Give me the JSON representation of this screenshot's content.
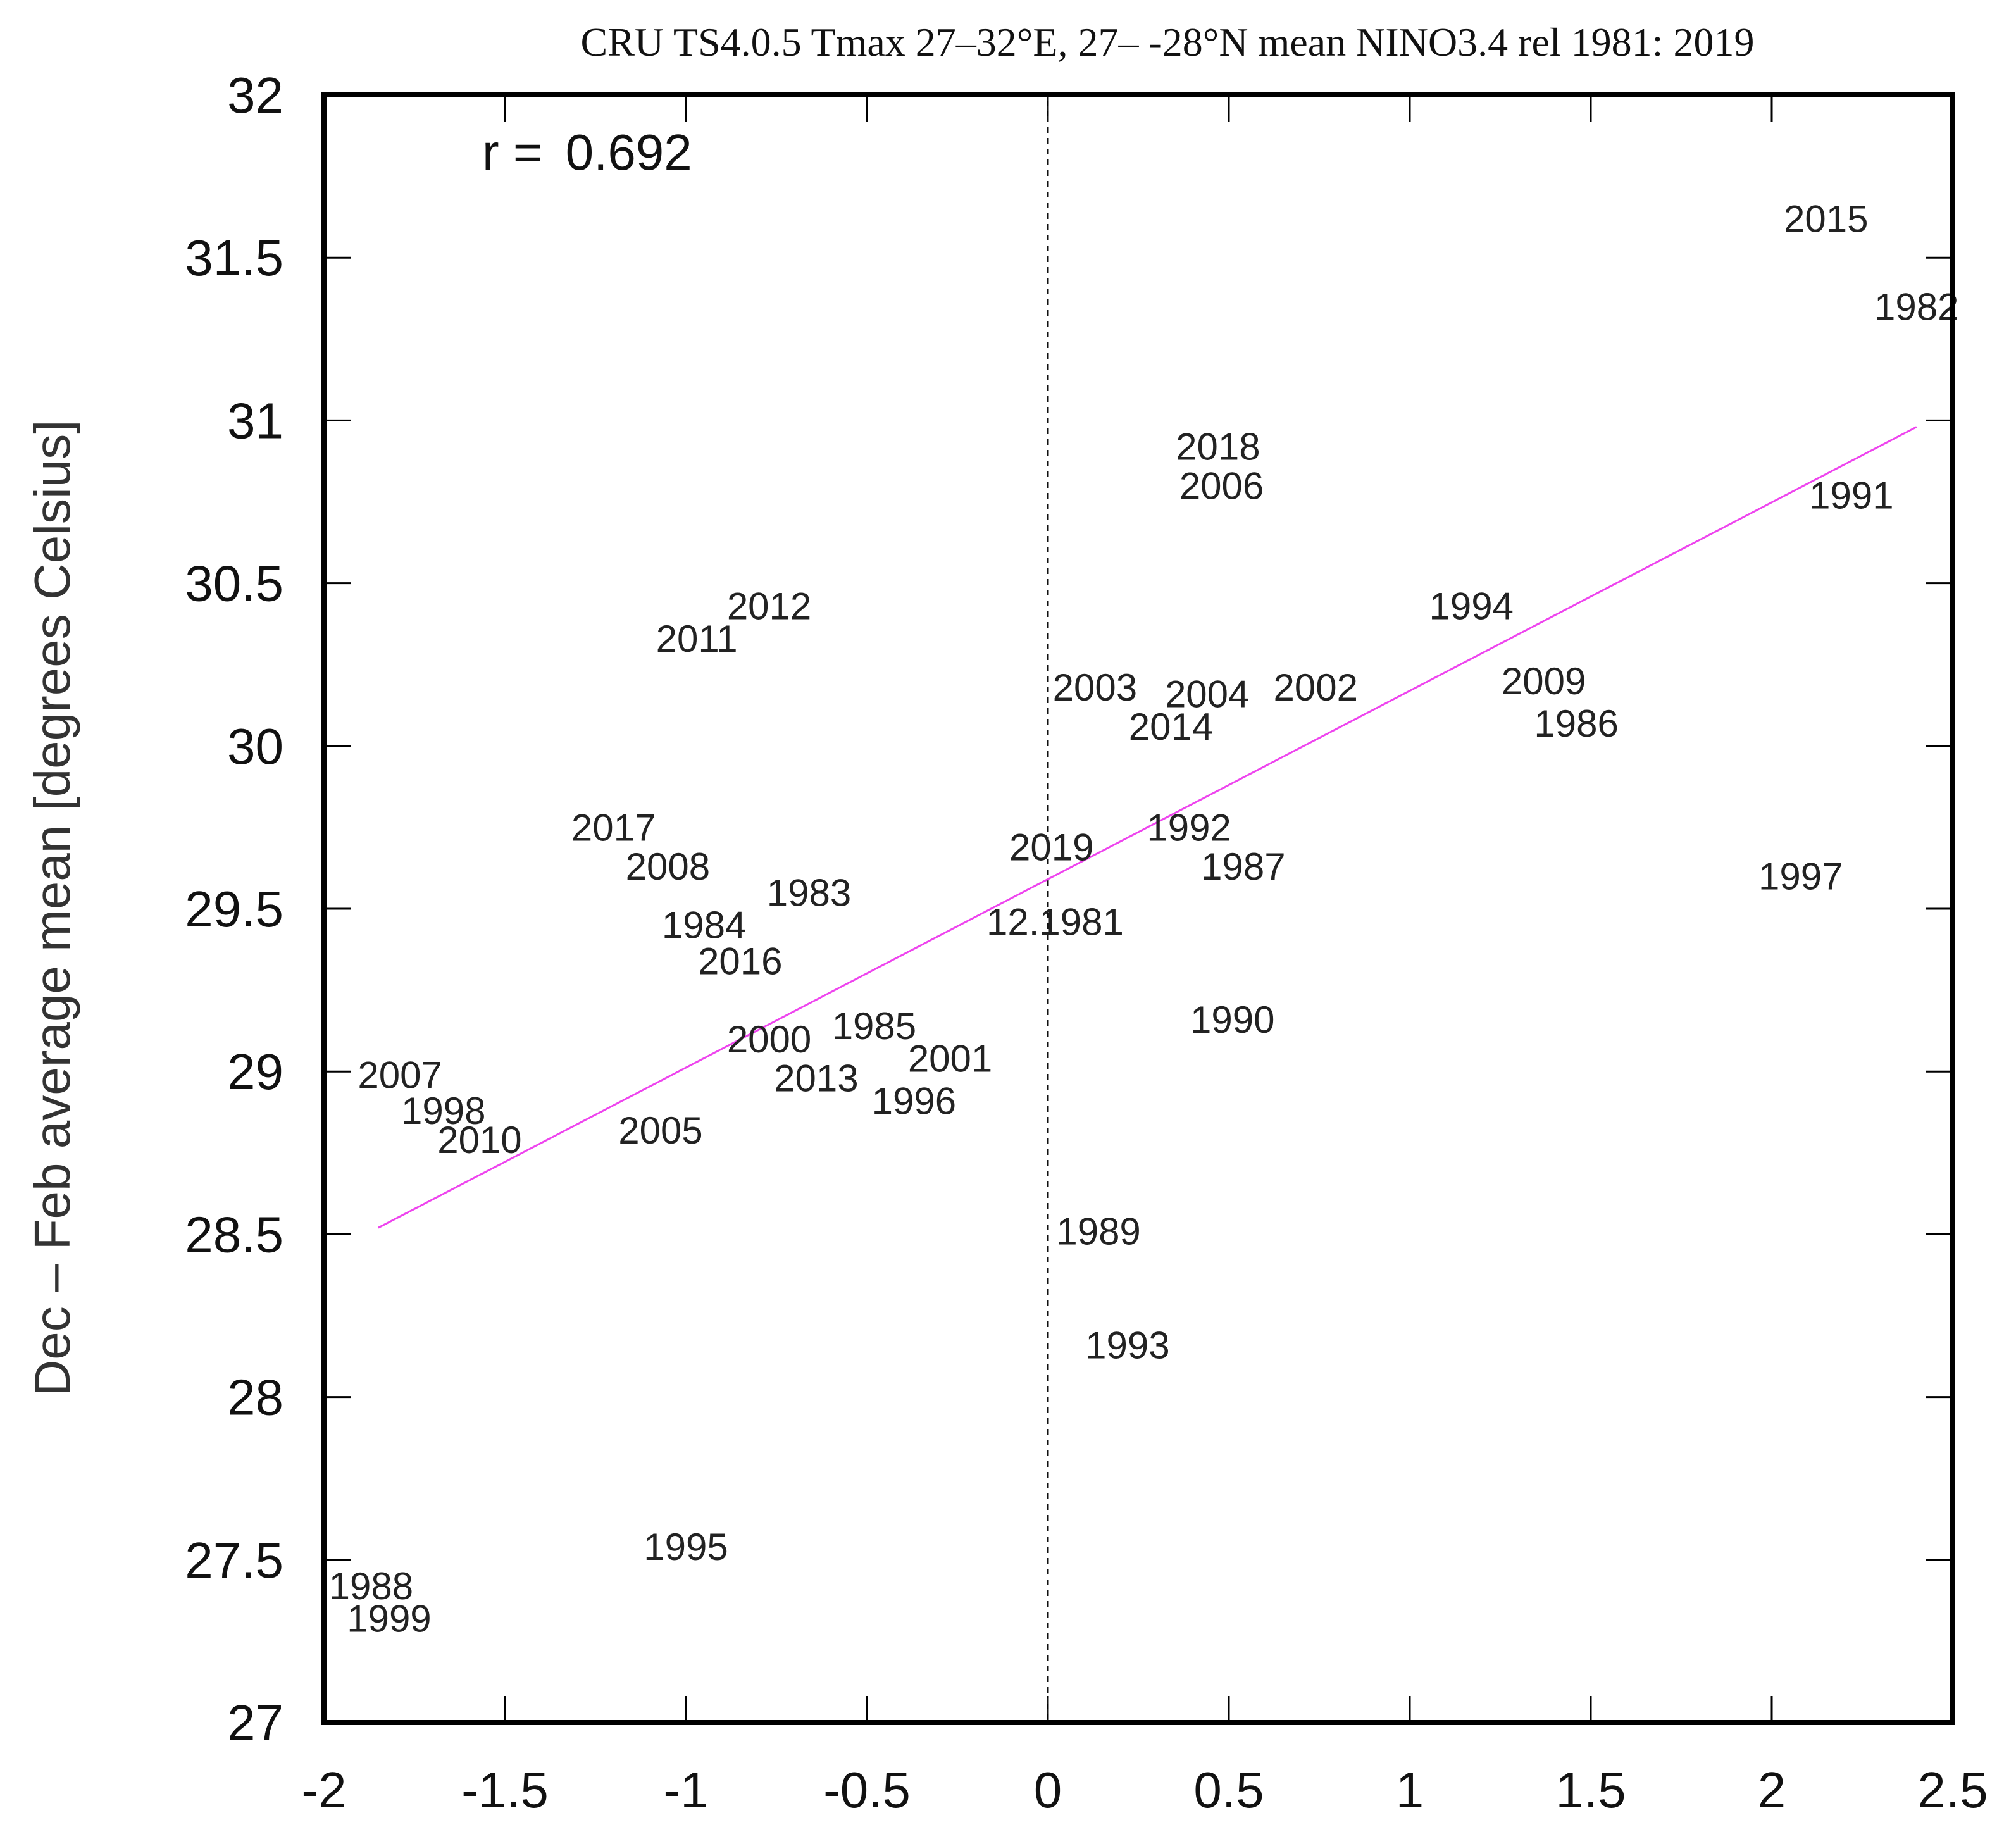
{
  "chart_data": {
    "type": "scatter",
    "title": "CRU TS4.0.5 Tmax 27–32°E, 27– -28°N mean NINO3.4 rel 1981: 2019",
    "xlabel": "",
    "ylabel": "Dec – Feb average mean [degrees Celsius]",
    "xlim": [
      -2,
      2.5
    ],
    "ylim": [
      27,
      32
    ],
    "xticks": [
      "-2",
      "-1.5",
      "-1",
      "-0.5",
      "0",
      "0.5",
      "1",
      "1.5",
      "2",
      "2.5"
    ],
    "yticks": [
      "27",
      "27.5",
      "28",
      "28.5",
      "29",
      "29.5",
      "30",
      "30.5",
      "31",
      "31.5",
      "32"
    ],
    "correlation": {
      "label": "r =",
      "value": "0.692"
    },
    "zero_line": {
      "x": 0,
      "style": "dotted"
    },
    "regression": {
      "color": "#ee44ee",
      "x0": -1.85,
      "y0": 28.52,
      "x1": 2.4,
      "y1": 30.98
    },
    "points": [
      {
        "label": "2015",
        "x": 2.15,
        "y": 31.62
      },
      {
        "label": "1982",
        "x": 2.4,
        "y": 31.35
      },
      {
        "label": "2018",
        "x": 0.47,
        "y": 30.92
      },
      {
        "label": "2006",
        "x": 0.48,
        "y": 30.8
      },
      {
        "label": "1991",
        "x": 2.22,
        "y": 30.77
      },
      {
        "label": "1994",
        "x": 1.17,
        "y": 30.43
      },
      {
        "label": "2012",
        "x": -0.77,
        "y": 30.43
      },
      {
        "label": "2011",
        "x": -0.97,
        "y": 30.33
      },
      {
        "label": "2003",
        "x": 0.13,
        "y": 30.18
      },
      {
        "label": "2004",
        "x": 0.44,
        "y": 30.16
      },
      {
        "label": "2002",
        "x": 0.74,
        "y": 30.18
      },
      {
        "label": "2009",
        "x": 1.37,
        "y": 30.2
      },
      {
        "label": "2014",
        "x": 0.34,
        "y": 30.06
      },
      {
        "label": "1986",
        "x": 1.46,
        "y": 30.07
      },
      {
        "label": "2017",
        "x": -1.2,
        "y": 29.75
      },
      {
        "label": "1992",
        "x": 0.39,
        "y": 29.75
      },
      {
        "label": "2019",
        "x": 0.01,
        "y": 29.69
      },
      {
        "label": "2008",
        "x": -1.05,
        "y": 29.63
      },
      {
        "label": "1987",
        "x": 0.54,
        "y": 29.63
      },
      {
        "label": "1997",
        "x": 2.08,
        "y": 29.6
      },
      {
        "label": "1983",
        "x": -0.66,
        "y": 29.55
      },
      {
        "label": "1984",
        "x": -0.95,
        "y": 29.45
      },
      {
        "label": "12.1981",
        "x": 0.02,
        "y": 29.46
      },
      {
        "label": "2016",
        "x": -0.85,
        "y": 29.34
      },
      {
        "label": "1990",
        "x": 0.51,
        "y": 29.16
      },
      {
        "label": "1985",
        "x": -0.48,
        "y": 29.14
      },
      {
        "label": "2000",
        "x": -0.77,
        "y": 29.1
      },
      {
        "label": "2001",
        "x": -0.27,
        "y": 29.04
      },
      {
        "label": "2007",
        "x": -1.79,
        "y": 28.99
      },
      {
        "label": "2013",
        "x": -0.64,
        "y": 28.98
      },
      {
        "label": "1996",
        "x": -0.37,
        "y": 28.91
      },
      {
        "label": "1998",
        "x": -1.67,
        "y": 28.88
      },
      {
        "label": "2005",
        "x": -1.07,
        "y": 28.82
      },
      {
        "label": "2010",
        "x": -1.57,
        "y": 28.79
      },
      {
        "label": "1989",
        "x": 0.14,
        "y": 28.51
      },
      {
        "label": "1993",
        "x": 0.22,
        "y": 28.16
      },
      {
        "label": "1995",
        "x": -1.0,
        "y": 27.54
      },
      {
        "label": "1988",
        "x": -1.87,
        "y": 27.42
      },
      {
        "label": "1999",
        "x": -1.82,
        "y": 27.32
      }
    ]
  }
}
